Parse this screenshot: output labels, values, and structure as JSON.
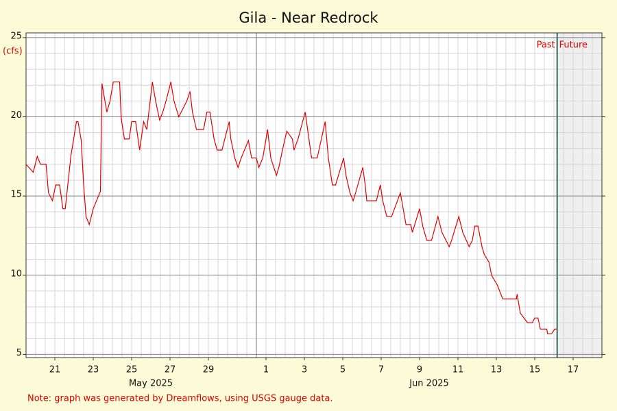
{
  "chart_data": {
    "type": "line",
    "title": "Gila - Near Redrock",
    "y_label": "(cfs)",
    "note": "Note: graph was generated by Dreamflows, using USGS gauge data.",
    "color": "#e00000",
    "x": [
      "2025-05-20T00:00",
      "2025-05-20T09:00",
      "2025-05-20T14:00",
      "2025-05-20T18:00",
      "2025-05-21T01:00",
      "2025-05-21T04:00",
      "2025-05-21T09:00",
      "2025-05-21T13:00",
      "2025-05-21T18:00",
      "2025-05-21T22:00",
      "2025-05-22T01:00",
      "2025-05-22T08:00",
      "2025-05-22T15:00",
      "2025-05-22T17:00",
      "2025-05-22T21:00",
      "2025-05-23T00:00",
      "2025-05-23T03:00",
      "2025-05-23T07:00",
      "2025-05-23T12:00",
      "2025-05-23T21:00",
      "2025-05-23T23:00",
      "2025-05-24T02:00",
      "2025-05-24T05:00",
      "2025-05-24T09:00",
      "2025-05-24T13:00",
      "2025-05-24T21:00",
      "2025-05-24T23:00",
      "2025-05-25T03:00",
      "2025-05-25T09:00",
      "2025-05-25T12:00",
      "2025-05-25T17:00",
      "2025-05-25T22:00",
      "2025-05-26T03:00",
      "2025-05-26T07:00",
      "2025-05-26T14:00",
      "2025-05-26T18:00",
      "2025-05-26T23:00",
      "2025-05-27T03:00",
      "2025-05-27T07:00",
      "2025-05-27T13:00",
      "2025-05-27T17:00",
      "2025-05-27T23:00",
      "2025-05-28T02:00",
      "2025-05-28T09:00",
      "2025-05-28T13:00",
      "2025-05-28T16:00",
      "2025-05-28T21:00",
      "2025-05-29T06:00",
      "2025-05-29T10:00",
      "2025-05-29T14:00",
      "2025-05-29T19:00",
      "2025-05-29T23:00",
      "2025-05-30T05:00",
      "2025-05-30T14:00",
      "2025-05-30T16:00",
      "2025-05-30T21:00",
      "2025-05-31T01:00",
      "2025-05-31T05:00",
      "2025-05-31T14:00",
      "2025-05-31T18:00",
      "2025-06-01T00:00",
      "2025-06-01T03:00",
      "2025-06-01T08:00",
      "2025-06-01T14:00",
      "2025-06-01T18:00",
      "2025-06-02T01:00",
      "2025-06-02T04:00",
      "2025-06-02T09:00",
      "2025-06-02T14:00",
      "2025-06-02T21:00",
      "2025-06-02T23:00",
      "2025-06-03T04:00",
      "2025-06-03T13:00",
      "2025-06-03T16:00",
      "2025-06-03T21:00",
      "2025-06-04T04:00",
      "2025-06-04T14:00",
      "2025-06-04T18:00",
      "2025-06-04T23:00",
      "2025-06-05T03:00",
      "2025-06-05T13:00",
      "2025-06-05T16:00",
      "2025-06-05T21:00",
      "2025-06-06T01:00",
      "2025-06-06T04:00",
      "2025-06-06T13:00",
      "2025-06-06T16:00",
      "2025-06-06T18:00",
      "2025-06-07T06:00",
      "2025-06-07T11:00",
      "2025-06-07T14:00",
      "2025-06-07T19:00",
      "2025-06-08T01:00",
      "2025-06-08T12:00",
      "2025-06-08T19:00",
      "2025-06-09T01:00",
      "2025-06-09T03:00",
      "2025-06-09T12:00",
      "2025-06-09T16:00",
      "2025-06-09T21:00",
      "2025-06-10T03:00",
      "2025-06-10T11:00",
      "2025-06-10T16:00",
      "2025-06-11T01:00",
      "2025-06-11T04:00",
      "2025-06-11T13:00",
      "2025-06-11T18:00",
      "2025-06-12T02:00",
      "2025-06-12T06:00",
      "2025-06-12T09:00",
      "2025-06-12T13:00",
      "2025-06-12T18:00",
      "2025-06-12T21:00",
      "2025-06-13T03:00",
      "2025-06-13T06:00",
      "2025-06-13T13:00",
      "2025-06-13T20:00",
      "2025-06-14T13:00",
      "2025-06-14T14:00",
      "2025-06-14T18:00",
      "2025-06-15T03:00",
      "2025-06-15T09:00",
      "2025-06-15T12:00",
      "2025-06-15T16:00",
      "2025-06-15T19:00",
      "2025-06-16T03:00",
      "2025-06-16T04:00",
      "2025-06-16T09:00",
      "2025-06-16T13:00",
      "2025-06-16T16:00"
    ],
    "values": [
      17.0,
      16.5,
      17.5,
      17.0,
      17.0,
      15.2,
      14.7,
      15.7,
      15.7,
      14.2,
      14.2,
      17.5,
      19.7,
      19.7,
      18.5,
      15.7,
      13.7,
      13.2,
      14.2,
      15.3,
      22.1,
      21.2,
      20.3,
      21.0,
      22.2,
      22.2,
      19.9,
      18.6,
      18.6,
      19.7,
      19.7,
      17.9,
      19.7,
      19.2,
      22.2,
      21.0,
      19.8,
      20.3,
      21.0,
      22.2,
      21.0,
      20.0,
      20.3,
      21.0,
      21.6,
      20.3,
      19.2,
      19.2,
      20.3,
      20.3,
      18.6,
      17.9,
      17.9,
      19.7,
      18.6,
      17.4,
      16.8,
      17.4,
      18.5,
      17.4,
      17.4,
      16.8,
      17.4,
      19.2,
      17.4,
      16.3,
      16.8,
      18.0,
      19.1,
      18.6,
      17.9,
      18.6,
      20.3,
      19.2,
      17.4,
      17.4,
      19.7,
      17.4,
      15.7,
      15.7,
      17.4,
      16.3,
      15.2,
      14.7,
      15.2,
      16.8,
      15.7,
      14.7,
      14.7,
      15.7,
      14.7,
      13.7,
      13.7,
      15.2,
      13.2,
      13.2,
      12.7,
      14.2,
      13.1,
      12.2,
      12.2,
      13.7,
      12.7,
      11.8,
      12.2,
      13.7,
      12.7,
      11.8,
      12.2,
      13.1,
      13.1,
      11.8,
      11.3,
      10.8,
      10.0,
      9.4,
      8.5,
      8.5,
      8.8,
      7.6,
      7.0,
      7.0,
      7.3,
      7.3,
      6.6,
      6.6,
      6.3,
      6.3,
      6.6,
      6.6
    ],
    "xlim": [
      "2025-05-20T00:00",
      "2025-06-19T00:00"
    ],
    "xticks": [
      {
        "value": "2025-05-21T12:00",
        "label": "21"
      },
      {
        "value": "2025-05-23T12:00",
        "label": "23"
      },
      {
        "value": "2025-05-25T12:00",
        "label": "25"
      },
      {
        "value": "2025-05-27T12:00",
        "label": "27"
      },
      {
        "value": "2025-05-29T12:00",
        "label": "29"
      },
      {
        "value": "2025-06-01T12:00",
        "label": "1"
      },
      {
        "value": "2025-06-03T12:00",
        "label": "3"
      },
      {
        "value": "2025-06-05T12:00",
        "label": "5"
      },
      {
        "value": "2025-06-07T12:00",
        "label": "7"
      },
      {
        "value": "2025-06-09T12:00",
        "label": "9"
      },
      {
        "value": "2025-06-11T12:00",
        "label": "11"
      },
      {
        "value": "2025-06-13T12:00",
        "label": "13"
      },
      {
        "value": "2025-06-15T12:00",
        "label": "15"
      },
      {
        "value": "2025-06-17T12:00",
        "label": "17"
      }
    ],
    "month_labels": [
      {
        "value": "2025-05-26T12:00",
        "label": "May 2025"
      },
      {
        "value": "2025-06-10T00:00",
        "label": "Jun 2025"
      }
    ],
    "month_boundaries": [
      "2025-06-01T00:00"
    ],
    "ylim": [
      4.8,
      25.3
    ],
    "yticks": [
      5,
      10,
      15,
      20,
      25
    ],
    "grid": true,
    "minor_grid": true,
    "now": "2025-06-16T16:00",
    "past_label": "Past",
    "future_label": "Future"
  }
}
